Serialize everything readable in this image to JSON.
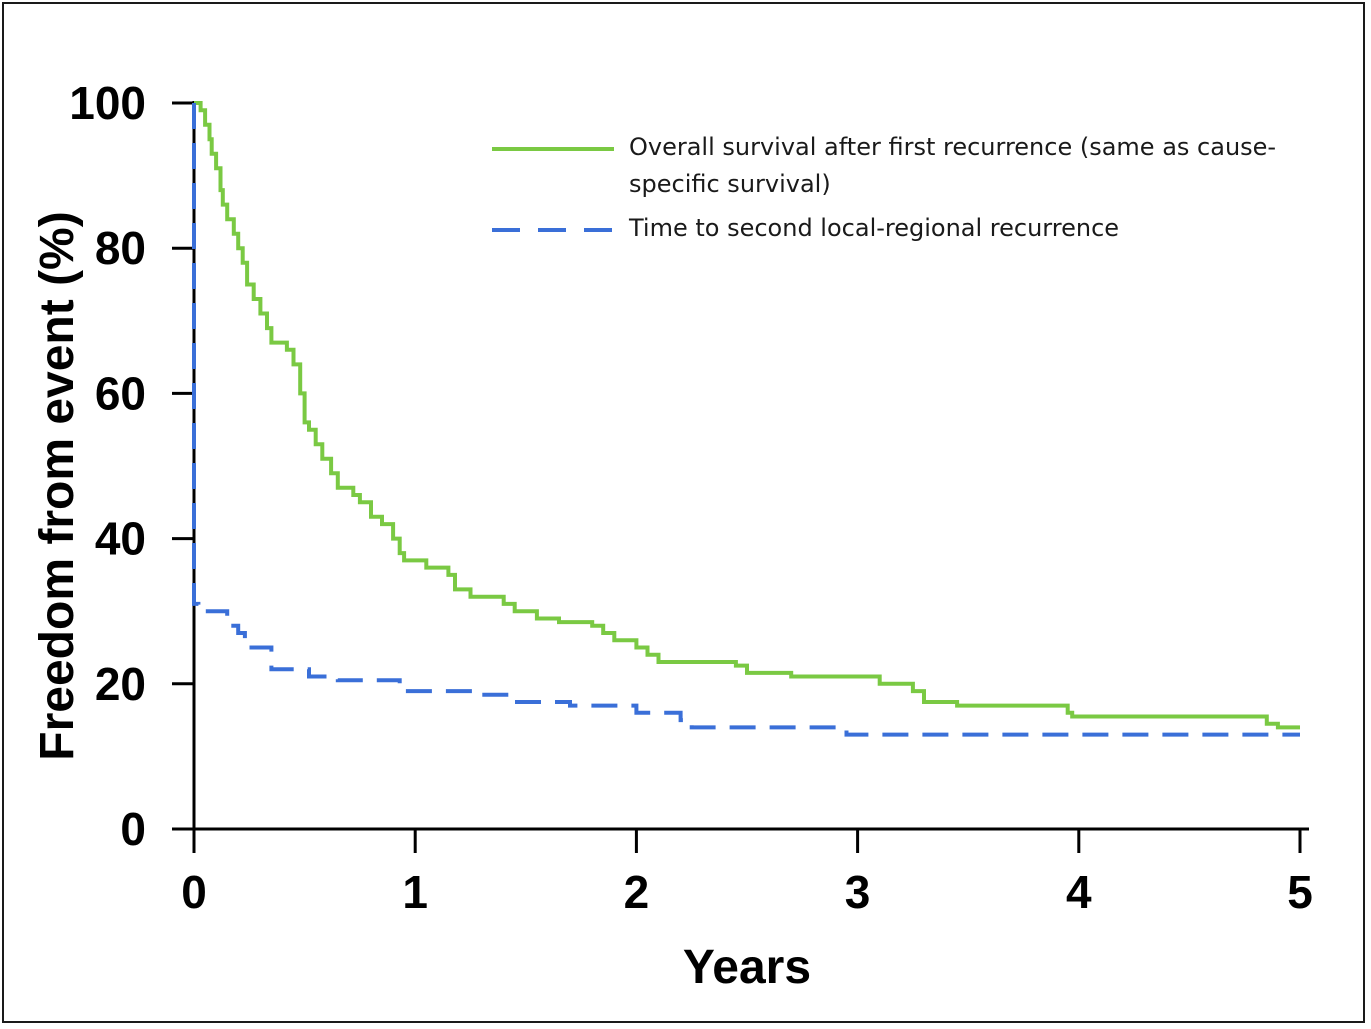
{
  "chart_data": {
    "type": "line",
    "step": true,
    "xlabel": "Years",
    "ylabel": "Freedom from event (%)",
    "xlim": [
      0,
      5
    ],
    "ylim": [
      0,
      100
    ],
    "xticks": [
      "0",
      "1",
      "2",
      "3",
      "4",
      "5"
    ],
    "yticks": [
      "0",
      "20",
      "40",
      "60",
      "80",
      "100"
    ],
    "grid": false,
    "legend_position": "top-right",
    "series": [
      {
        "name": "Overall survival after first recurrence (same as cause-specific survival)",
        "legend_lines": [
          "Overall survival after first recurrence (same as cause-",
          "specific survival)"
        ],
        "color": "#7ac943",
        "style": "solid",
        "points": [
          [
            0,
            100
          ],
          [
            0.03,
            99
          ],
          [
            0.05,
            97
          ],
          [
            0.07,
            95
          ],
          [
            0.08,
            93
          ],
          [
            0.1,
            91
          ],
          [
            0.12,
            88
          ],
          [
            0.13,
            86
          ],
          [
            0.15,
            84
          ],
          [
            0.18,
            82
          ],
          [
            0.2,
            80
          ],
          [
            0.22,
            78
          ],
          [
            0.24,
            75
          ],
          [
            0.27,
            73
          ],
          [
            0.3,
            71
          ],
          [
            0.33,
            69
          ],
          [
            0.35,
            67
          ],
          [
            0.42,
            66
          ],
          [
            0.45,
            64
          ],
          [
            0.48,
            60
          ],
          [
            0.5,
            56
          ],
          [
            0.52,
            55
          ],
          [
            0.55,
            53
          ],
          [
            0.58,
            51
          ],
          [
            0.62,
            49
          ],
          [
            0.65,
            47
          ],
          [
            0.72,
            46
          ],
          [
            0.75,
            45
          ],
          [
            0.8,
            43
          ],
          [
            0.85,
            42
          ],
          [
            0.9,
            40
          ],
          [
            0.93,
            38
          ],
          [
            0.95,
            37
          ],
          [
            1.05,
            36
          ],
          [
            1.15,
            35
          ],
          [
            1.18,
            33
          ],
          [
            1.25,
            32
          ],
          [
            1.4,
            31
          ],
          [
            1.45,
            30
          ],
          [
            1.55,
            29
          ],
          [
            1.65,
            28.5
          ],
          [
            1.8,
            28
          ],
          [
            1.85,
            27
          ],
          [
            1.9,
            26
          ],
          [
            2.0,
            25
          ],
          [
            2.05,
            24
          ],
          [
            2.1,
            23
          ],
          [
            2.45,
            22.5
          ],
          [
            2.5,
            21.5
          ],
          [
            2.7,
            21
          ],
          [
            3.1,
            20
          ],
          [
            3.25,
            19
          ],
          [
            3.3,
            17.5
          ],
          [
            3.45,
            17
          ],
          [
            3.95,
            16
          ],
          [
            3.97,
            15.5
          ],
          [
            4.85,
            14.5
          ],
          [
            4.9,
            14
          ],
          [
            5.0,
            14
          ]
        ]
      },
      {
        "name": "Time to second local-regional recurrence",
        "legend_lines": [
          "Time to second local-regional recurrence"
        ],
        "color": "#3a6fd8",
        "style": "dashed",
        "points": [
          [
            0,
            100
          ],
          [
            0,
            31
          ],
          [
            0.02,
            30
          ],
          [
            0.15,
            28
          ],
          [
            0.2,
            27
          ],
          [
            0.23,
            25
          ],
          [
            0.35,
            22
          ],
          [
            0.52,
            21
          ],
          [
            0.65,
            20.5
          ],
          [
            0.93,
            19
          ],
          [
            1.3,
            18.5
          ],
          [
            1.45,
            17.5
          ],
          [
            1.7,
            17
          ],
          [
            2.0,
            16
          ],
          [
            2.2,
            15
          ],
          [
            2.25,
            14
          ],
          [
            2.95,
            13
          ],
          [
            5.0,
            13
          ]
        ]
      }
    ]
  }
}
